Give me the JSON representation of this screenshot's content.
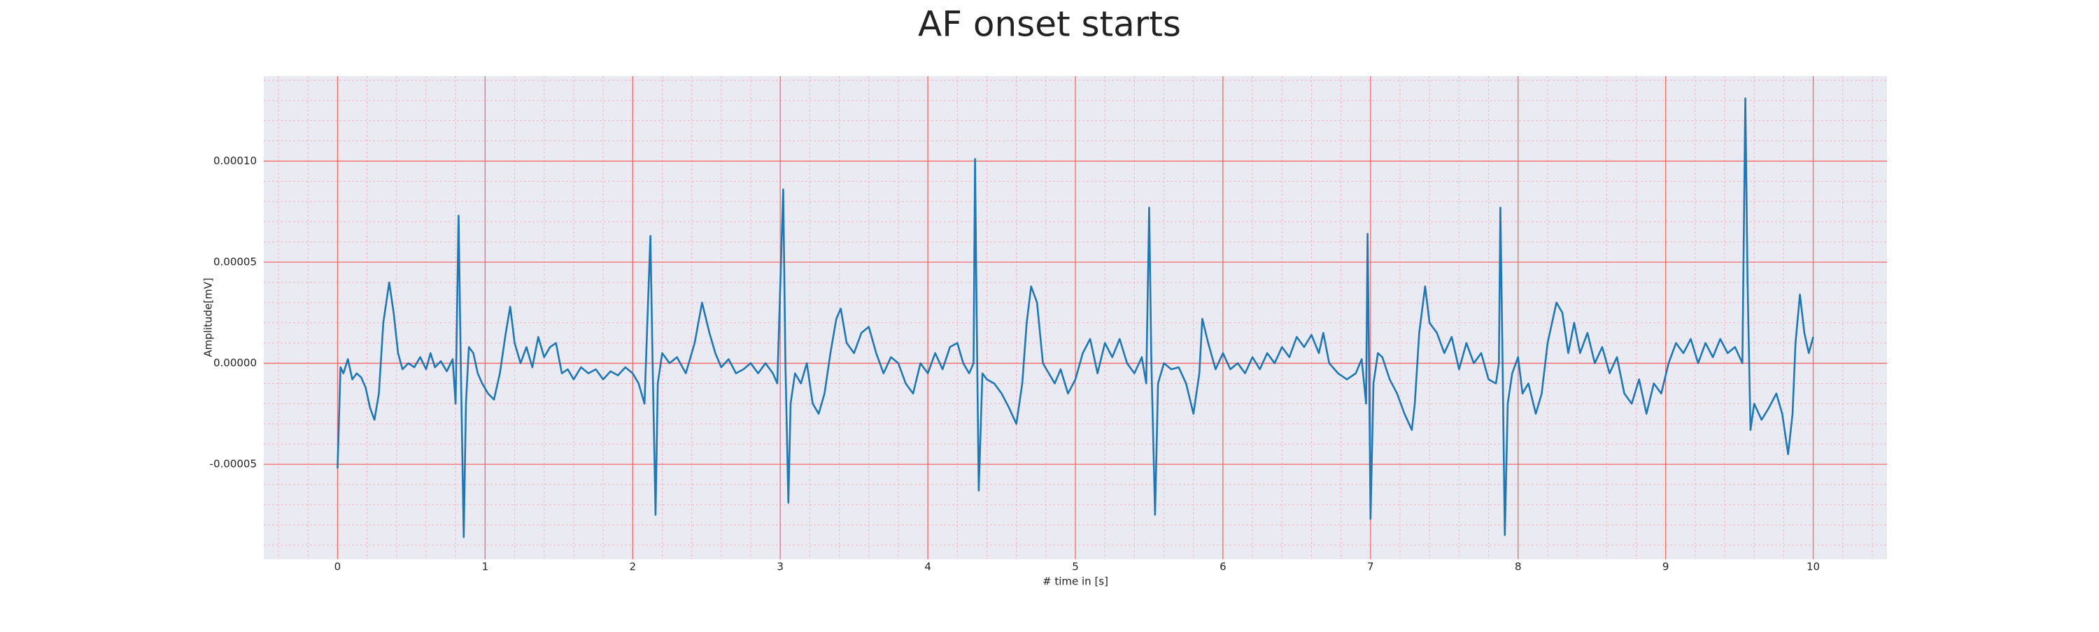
{
  "chart_data": {
    "type": "line",
    "title": "AF onset starts",
    "xlabel": "# time in [s]",
    "ylabel": "Amplitude[mV]",
    "xlim": [
      -0.5,
      10.5
    ],
    "ylim": [
      -9.7e-05,
      0.000142
    ],
    "xticks": [
      0,
      1,
      2,
      3,
      4,
      5,
      6,
      7,
      8,
      9,
      10
    ],
    "yticks": [
      {
        "value": -5e-05,
        "label": "-0.00005"
      },
      {
        "value": 0,
        "label": "0.00000"
      },
      {
        "value": 5e-05,
        "label": "0.00005"
      },
      {
        "value": 0.0001,
        "label": "0.00010"
      }
    ],
    "minor_xticks": [
      -0.4,
      -0.2,
      0,
      0.2,
      0.4,
      0.6,
      0.8,
      1,
      1.2,
      1.4,
      1.6,
      1.8,
      2,
      2.2,
      2.4,
      2.6,
      2.8,
      3,
      3.2,
      3.4,
      3.6,
      3.8,
      4,
      4.2,
      4.4,
      4.6,
      4.8,
      5,
      5.2,
      5.4,
      5.6,
      5.8,
      6,
      6.2,
      6.4,
      6.6,
      6.8,
      7,
      7.2,
      7.4,
      7.6,
      7.8,
      8,
      8.2,
      8.4,
      8.6,
      8.8,
      9,
      9.2,
      9.4,
      9.6,
      9.8,
      10,
      10.2,
      10.4
    ],
    "minor_yticks": [
      -9e-05,
      -8e-05,
      -7e-05,
      -6e-05,
      -5e-05,
      -4e-05,
      -3e-05,
      -2e-05,
      -1e-05,
      0,
      1e-05,
      2e-05,
      3e-05,
      4e-05,
      5e-05,
      6e-05,
      7e-05,
      8e-05,
      9e-05,
      0.0001,
      0.00011,
      0.00012,
      0.00013,
      0.00014
    ],
    "grid": true,
    "grid_color": "#f36a6a",
    "minor_grid_color": "#f7b5c0",
    "background": "#eaeaf2",
    "x": [
      0,
      0.02,
      0.04,
      0.07,
      0.1,
      0.13,
      0.16,
      0.19,
      0.22,
      0.25,
      0.28,
      0.31,
      0.35,
      0.38,
      0.41,
      0.44,
      0.48,
      0.52,
      0.56,
      0.6,
      0.63,
      0.66,
      0.7,
      0.74,
      0.78,
      0.8,
      0.82,
      0.835,
      0.855,
      0.87,
      0.89,
      0.92,
      0.95,
      0.98,
      1.02,
      1.06,
      1.1,
      1.14,
      1.17,
      1.2,
      1.24,
      1.28,
      1.32,
      1.36,
      1.4,
      1.44,
      1.48,
      1.52,
      1.56,
      1.6,
      1.65,
      1.7,
      1.75,
      1.8,
      1.85,
      1.9,
      1.95,
      2.0,
      2.04,
      2.08,
      2.12,
      2.135,
      2.155,
      2.17,
      2.2,
      2.25,
      2.3,
      2.36,
      2.42,
      2.47,
      2.52,
      2.56,
      2.6,
      2.65,
      2.7,
      2.75,
      2.8,
      2.85,
      2.9,
      2.95,
      2.98,
      3.02,
      3.035,
      3.055,
      3.07,
      3.1,
      3.14,
      3.18,
      3.22,
      3.26,
      3.3,
      3.34,
      3.38,
      3.41,
      3.45,
      3.5,
      3.55,
      3.6,
      3.65,
      3.7,
      3.75,
      3.8,
      3.85,
      3.9,
      3.95,
      4.0,
      4.05,
      4.1,
      4.15,
      4.2,
      4.24,
      4.28,
      4.31,
      4.32,
      4.33,
      4.345,
      4.37,
      4.4,
      4.45,
      4.5,
      4.55,
      4.6,
      4.64,
      4.67,
      4.7,
      4.74,
      4.78,
      4.82,
      4.86,
      4.9,
      4.95,
      5.0,
      5.05,
      5.1,
      5.15,
      5.2,
      5.25,
      5.3,
      5.35,
      5.4,
      5.45,
      5.48,
      5.5,
      5.515,
      5.54,
      5.56,
      5.6,
      5.65,
      5.7,
      5.75,
      5.8,
      5.84,
      5.86,
      5.9,
      5.95,
      6.0,
      6.05,
      6.1,
      6.15,
      6.2,
      6.25,
      6.3,
      6.35,
      6.4,
      6.45,
      6.5,
      6.55,
      6.6,
      6.65,
      6.68,
      6.72,
      6.78,
      6.84,
      6.9,
      6.94,
      6.97,
      6.98,
      6.99,
      7.0,
      7.02,
      7.05,
      7.08,
      7.13,
      7.18,
      7.23,
      7.28,
      7.3,
      7.33,
      7.37,
      7.4,
      7.45,
      7.5,
      7.55,
      7.6,
      7.65,
      7.7,
      7.75,
      7.8,
      7.85,
      7.87,
      7.88,
      7.895,
      7.91,
      7.93,
      7.96,
      8.0,
      8.03,
      8.07,
      8.12,
      8.16,
      8.2,
      8.26,
      8.3,
      8.34,
      8.38,
      8.42,
      8.47,
      8.52,
      8.57,
      8.62,
      8.67,
      8.72,
      8.77,
      8.82,
      8.87,
      8.92,
      8.97,
      9.02,
      9.07,
      9.12,
      9.17,
      9.22,
      9.27,
      9.32,
      9.37,
      9.42,
      9.47,
      9.52,
      9.54,
      9.555,
      9.575,
      9.6,
      9.65,
      9.7,
      9.75,
      9.79,
      9.83,
      9.86,
      9.88,
      9.91,
      9.94,
      9.97,
      10.0
    ],
    "series": [
      {
        "color": "#1f77b4",
        "values": [
          -5.2e-05,
          -2e-06,
          -5e-06,
          2e-06,
          -8e-06,
          -5e-06,
          -7e-06,
          -1.2e-05,
          -2.2e-05,
          -2.8e-05,
          -1.5e-05,
          2e-05,
          4e-05,
          2.5e-05,
          5e-06,
          -3e-06,
          0,
          -2e-06,
          3e-06,
          -3e-06,
          5e-06,
          -2e-06,
          1e-06,
          -4e-06,
          2e-06,
          -2e-05,
          7.3e-05,
          0,
          -8.6e-05,
          -2e-05,
          8e-06,
          5e-06,
          -5e-06,
          -1e-05,
          -1.5e-05,
          -1.8e-05,
          -5e-06,
          1.5e-05,
          2.8e-05,
          1e-05,
          0,
          8e-06,
          -2e-06,
          1.3e-05,
          3e-06,
          8e-06,
          1e-05,
          -5e-06,
          -3e-06,
          -8e-06,
          -2e-06,
          -5e-06,
          -3e-06,
          -8e-06,
          -4e-06,
          -6e-06,
          -2e-06,
          -5e-06,
          -1e-05,
          -2e-05,
          6.3e-05,
          0,
          -7.5e-05,
          -1e-05,
          5e-06,
          0,
          3e-06,
          -5e-06,
          1e-05,
          3e-05,
          1.5e-05,
          5e-06,
          -2e-06,
          2e-06,
          -5e-06,
          -3e-06,
          0,
          -5e-06,
          0,
          -5e-06,
          -1e-05,
          8.6e-05,
          0,
          -6.9e-05,
          -2e-05,
          -5e-06,
          -1e-05,
          0,
          -2e-05,
          -2.5e-05,
          -1.5e-05,
          5e-06,
          2.2e-05,
          2.7e-05,
          1e-05,
          5e-06,
          1.5e-05,
          1.8e-05,
          5e-06,
          -5e-06,
          3e-06,
          0,
          -1e-05,
          -1.5e-05,
          0,
          -5e-06,
          5e-06,
          -3e-06,
          8e-06,
          1e-05,
          0,
          -5e-06,
          0,
          0.000101,
          3e-05,
          -6.3e-05,
          -5e-06,
          -8e-06,
          -1e-05,
          -1.5e-05,
          -2.2e-05,
          -3e-05,
          -1e-05,
          2e-05,
          3.8e-05,
          3e-05,
          0,
          -5e-06,
          -1e-05,
          -3e-06,
          -1.5e-05,
          -8e-06,
          5e-06,
          1.2e-05,
          -5e-06,
          1e-05,
          3e-06,
          1.2e-05,
          0,
          -5e-06,
          3e-06,
          -1e-05,
          7.7e-05,
          0,
          -7.5e-05,
          -1e-05,
          0,
          -3e-06,
          -2e-06,
          -1e-05,
          -2.5e-05,
          -5e-06,
          2.2e-05,
          1e-05,
          -3e-06,
          5e-06,
          -3e-06,
          0,
          -5e-06,
          3e-06,
          -3e-06,
          5e-06,
          0,
          8e-06,
          3e-06,
          1.3e-05,
          8e-06,
          1.4e-05,
          5e-06,
          1.5e-05,
          0,
          -5e-06,
          -8e-06,
          -5e-06,
          2e-06,
          -2e-05,
          6.4e-05,
          0,
          -7.7e-05,
          -1e-05,
          5e-06,
          3e-06,
          -8e-06,
          -1.5e-05,
          -2.5e-05,
          -3.3e-05,
          -2e-05,
          1.5e-05,
          3.8e-05,
          2e-05,
          1.5e-05,
          5e-06,
          1.3e-05,
          -3e-06,
          1e-05,
          0,
          5e-06,
          -8e-06,
          -1e-05,
          0,
          7.7e-05,
          0,
          -8.5e-05,
          -2e-05,
          -5e-06,
          3e-06,
          -1.5e-05,
          -1e-05,
          -2.5e-05,
          -1.5e-05,
          1e-05,
          3e-05,
          2.5e-05,
          5e-06,
          2e-05,
          5e-06,
          1.5e-05,
          0,
          8e-06,
          -5e-06,
          3e-06,
          -1.5e-05,
          -2e-05,
          -8e-06,
          -2.5e-05,
          -1e-05,
          -1.5e-05,
          0,
          1e-05,
          5e-06,
          1.2e-05,
          0,
          1e-05,
          3e-06,
          1.2e-05,
          5e-06,
          8e-06,
          0,
          0.000131,
          4e-05,
          -3.3e-05,
          -2e-05,
          -2.8e-05,
          -2.2e-05,
          -1.5e-05,
          -2.5e-05,
          -4.5e-05,
          -2.5e-05,
          1e-05,
          3.4e-05,
          1.5e-05,
          5e-06,
          1.3e-05
        ]
      }
    ]
  }
}
